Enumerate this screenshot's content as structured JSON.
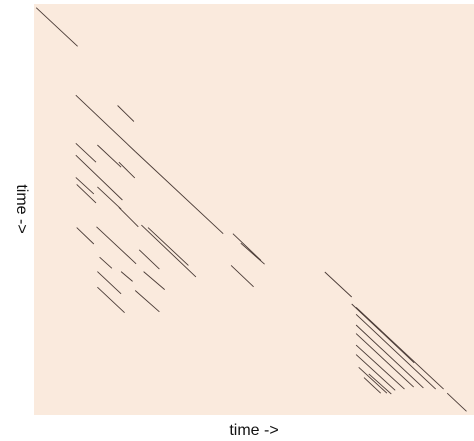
{
  "chart_data": {
    "type": "line",
    "xlabel": "time ->",
    "ylabel": "time ->",
    "xlim": [
      0,
      100
    ],
    "ylim": [
      0,
      100
    ],
    "background_color": "#faeadd",
    "line_color": "#4a3b36",
    "grid": false,
    "legend": "none",
    "diagonals": [
      [
        0,
        10
      ],
      [
        10,
        23
      ],
      [
        23,
        43
      ],
      [
        43,
        45
      ],
      [
        45,
        52
      ],
      [
        66,
        72
      ],
      [
        72,
        79
      ],
      [
        79,
        87
      ],
      [
        94,
        98
      ],
      [
        12,
        44
      ],
      [
        19,
        23
      ],
      [
        13,
        20
      ],
      [
        14,
        20
      ],
      [
        20,
        23
      ],
      [
        26,
        35
      ],
      [
        14,
        23
      ],
      [
        24,
        29
      ],
      [
        20,
        24
      ],
      [
        14,
        20
      ],
      [
        23,
        29
      ],
      [
        14,
        21
      ],
      [
        25,
        37
      ],
      [
        13,
        20
      ],
      [
        13,
        14
      ],
      [
        20,
        22
      ],
      [
        15,
        18
      ],
      [
        25,
        30
      ],
      [
        45,
        50
      ],
      [
        73,
        93
      ],
      [
        73,
        91
      ],
      [
        73,
        88
      ],
      [
        73,
        86
      ],
      [
        73,
        84
      ],
      [
        73,
        82
      ],
      [
        74,
        80
      ],
      [
        75,
        79
      ],
      [
        76,
        81
      ]
    ],
    "segments": [
      {
        "x": [
          0.5,
          9.9
        ],
        "y": [
          99.1,
          89.7
        ]
      },
      {
        "x": [
          9.5,
          23.0
        ],
        "y": [
          77.8,
          64.1
        ]
      },
      {
        "x": [
          23.0,
          43.0
        ],
        "y": [
          64.1,
          44.1
        ]
      },
      {
        "x": [
          45.2,
          51.6
        ],
        "y": [
          44.1,
          37.6
        ]
      },
      {
        "x": [
          47.0,
          52.4
        ],
        "y": [
          41.8,
          36.7
        ]
      },
      {
        "x": [
          66.1,
          72.2
        ],
        "y": [
          34.8,
          28.7
        ]
      },
      {
        "x": [
          72.2,
          86.4
        ],
        "y": [
          27.0,
          12.7
        ]
      },
      {
        "x": [
          93.9,
          98.3
        ],
        "y": [
          5.3,
          0.9
        ]
      },
      {
        "x": [
          19.0,
          22.7
        ],
        "y": [
          75.3,
          71.4
        ]
      },
      {
        "x": [
          9.5,
          14.1
        ],
        "y": [
          66.1,
          61.5
        ]
      },
      {
        "x": [
          14.4,
          19.8
        ],
        "y": [
          65.7,
          60.3
        ]
      },
      {
        "x": [
          9.7,
          14.1
        ],
        "y": [
          56.1,
          51.6
        ]
      },
      {
        "x": [
          14.4,
          19.8
        ],
        "y": [
          55.5,
          50.1
        ]
      },
      {
        "x": [
          19.3,
          22.9
        ],
        "y": [
          61.5,
          57.7
        ]
      },
      {
        "x": [
          25.9,
          35.1
        ],
        "y": [
          45.6,
          36.4
        ]
      },
      {
        "x": [
          14.2,
          23.2
        ],
        "y": [
          45.8,
          36.8
        ]
      },
      {
        "x": [
          23.9,
          28.5
        ],
        "y": [
          40.2,
          35.5
        ]
      },
      {
        "x": [
          19.3,
          23.7
        ],
        "y": [
          50.5,
          45.8
        ]
      },
      {
        "x": [
          14.4,
          19.8
        ],
        "y": [
          34.9,
          29.5
        ]
      },
      {
        "x": [
          23.0,
          28.5
        ],
        "y": [
          30.3,
          25.1
        ]
      },
      {
        "x": [
          14.4,
          20.6
        ],
        "y": [
          31.1,
          24.9
        ]
      },
      {
        "x": [
          24.4,
          36.8
        ],
        "y": [
          46.2,
          33.6
        ]
      },
      {
        "x": [
          9.5,
          20.1
        ],
        "y": [
          63.2,
          52.3
        ]
      },
      {
        "x": [
          9.5,
          13.6
        ],
        "y": [
          57.8,
          53.8
        ]
      },
      {
        "x": [
          9.7,
          13.6
        ],
        "y": [
          45.6,
          41.6
        ]
      },
      {
        "x": [
          19.8,
          22.4
        ],
        "y": [
          34.9,
          32.5
        ]
      },
      {
        "x": [
          14.9,
          17.7
        ],
        "y": [
          38.4,
          35.7
        ]
      },
      {
        "x": [
          24.9,
          29.7
        ],
        "y": [
          34.9,
          30.5
        ]
      },
      {
        "x": [
          44.8,
          49.9
        ],
        "y": [
          36.4,
          31.2
        ]
      },
      {
        "x": [
          73.2,
          93.1
        ],
        "y": [
          26.2,
          6.3
        ]
      },
      {
        "x": [
          73.2,
          91.3
        ],
        "y": [
          24.5,
          6.3
        ]
      },
      {
        "x": [
          73.2,
          88.5
        ],
        "y": [
          21.9,
          6.6
        ]
      },
      {
        "x": [
          73.2,
          86.3
        ],
        "y": [
          19.8,
          6.8
        ]
      },
      {
        "x": [
          73.2,
          84.2
        ],
        "y": [
          17.0,
          6.3
        ]
      },
      {
        "x": [
          73.2,
          82.1
        ],
        "y": [
          14.7,
          6.0
        ]
      },
      {
        "x": [
          73.8,
          80.2
        ],
        "y": [
          11.6,
          5.3
        ]
      },
      {
        "x": [
          75.0,
          78.8
        ],
        "y": [
          9.1,
          5.3
        ]
      },
      {
        "x": [
          76.1,
          81.2
        ],
        "y": [
          10.0,
          5.1
        ]
      }
    ]
  }
}
